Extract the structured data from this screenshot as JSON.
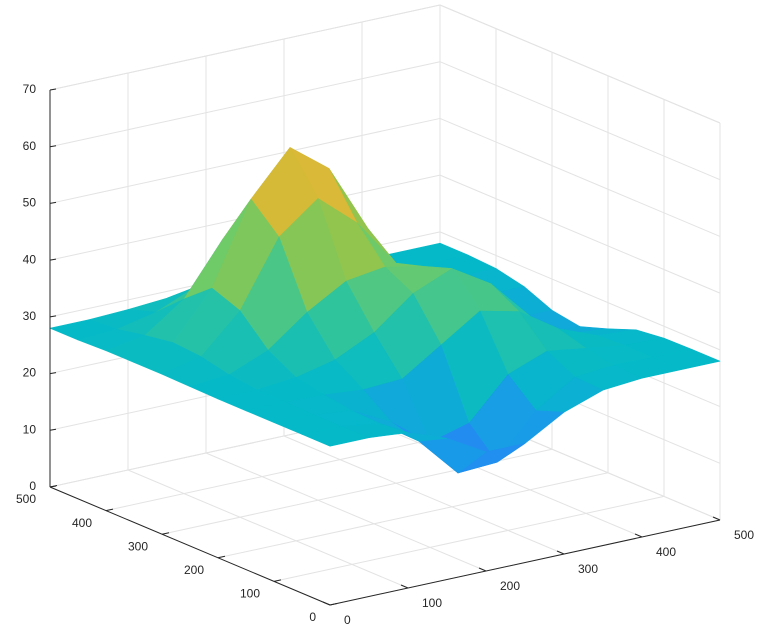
{
  "chart_data": {
    "type": "surface",
    "colormap": "parula",
    "grid": true,
    "x": [
      0,
      50,
      100,
      150,
      200,
      250,
      300,
      350,
      400,
      450,
      500
    ],
    "y": [
      0,
      50,
      100,
      150,
      200,
      250,
      300,
      350,
      400,
      450,
      500
    ],
    "z": [
      [
        28,
        28,
        27.4,
        24.9,
        21.0,
        21.0,
        25.0,
        27.4,
        28,
        28,
        28
      ],
      [
        28,
        27.9,
        26.9,
        22.3,
        15.2,
        15.6,
        23.2,
        27.6,
        28.2,
        28.1,
        28
      ],
      [
        28,
        27.9,
        27.1,
        23.6,
        18.5,
        20.4,
        27.5,
        30.1,
        29.1,
        28.1,
        27.9
      ],
      [
        28,
        28,
        27.8,
        27.2,
        27.6,
        32.1,
        36.6,
        35.0,
        30.5,
        27.8,
        27.3
      ],
      [
        28,
        28.1,
        28.8,
        30.4,
        33.7,
        39.1,
        42.0,
        37.8,
        30.6,
        26.0,
        25.4
      ],
      [
        28.1,
        28.7,
        31.5,
        36.7,
        40.7,
        41.7,
        40.3,
        35.3,
        28.6,
        24.0,
        23.7
      ],
      [
        28.2,
        29.8,
        36.4,
        47.9,
        53.2,
        47.4,
        38.8,
        32.1,
        27.4,
        24.5,
        24.5
      ],
      [
        28.2,
        30.2,
        38.3,
        52.5,
        60.1,
        54.9,
        42.8,
        32.3,
        27.9,
        26.5,
        26.6
      ],
      [
        28.2,
        29.4,
        34.3,
        43.4,
        50.0,
        50.3,
        42.4,
        32.3,
        28.3,
        27.7,
        27.7
      ],
      [
        28,
        28.4,
        29.9,
        32.8,
        35.5,
        36.7,
        34.1,
        29.9,
        28.2,
        28,
        28
      ],
      [
        28,
        28,
        28.3,
        28.8,
        29.2,
        29.4,
        29.0,
        28.3,
        28,
        28,
        28
      ]
    ],
    "xlim": [
      0,
      500
    ],
    "ylim": [
      0,
      500
    ],
    "zlim": [
      0,
      70
    ],
    "xticks": [
      0,
      100,
      200,
      300,
      400,
      500
    ],
    "yticks": [
      0,
      100,
      200,
      300,
      400,
      500
    ],
    "zticks": [
      0,
      10,
      20,
      30,
      40,
      50,
      60,
      70
    ]
  }
}
